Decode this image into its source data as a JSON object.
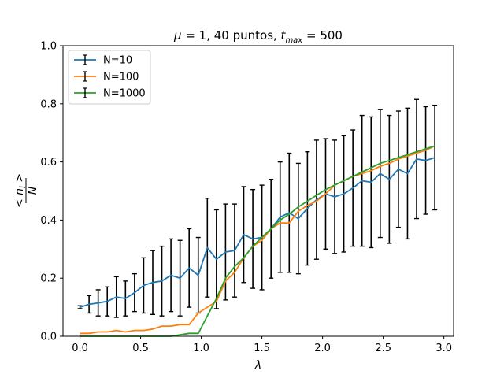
{
  "chart_data": {
    "type": "line",
    "title": "μ = 1, 40 puntos, t_max = 500",
    "title_parts": {
      "mu": "μ",
      "eq1": " = 1, 40 puntos, ",
      "t": "t",
      "sub": "max",
      "eq2": " = 500"
    },
    "xlabel": "λ",
    "ylabel": {
      "num": "< n",
      "sub": "i",
      "close": " >",
      "den": "N"
    },
    "xlim": [
      -0.14,
      3.08
    ],
    "ylim": [
      0.0,
      1.0
    ],
    "xticks": [
      0.0,
      0.5,
      1.0,
      1.5,
      2.0,
      2.5,
      3.0
    ],
    "xtick_labels": [
      "0.0",
      "0.5",
      "1.0",
      "1.5",
      "2.0",
      "2.5",
      "3.0"
    ],
    "yticks": [
      0.0,
      0.2,
      0.4,
      0.6,
      0.8,
      1.0
    ],
    "ytick_labels": [
      "0.0",
      "0.2",
      "0.4",
      "0.6",
      "0.8",
      "1.0"
    ],
    "legend_position": "top-left",
    "error_bar_series": "N=10",
    "x": [
      0.0,
      0.075,
      0.15,
      0.225,
      0.3,
      0.375,
      0.45,
      0.525,
      0.6,
      0.675,
      0.75,
      0.825,
      0.9,
      0.975,
      1.05,
      1.125,
      1.2,
      1.275,
      1.35,
      1.425,
      1.5,
      1.575,
      1.65,
      1.725,
      1.8,
      1.875,
      1.95,
      2.025,
      2.1,
      2.175,
      2.25,
      2.325,
      2.4,
      2.475,
      2.55,
      2.625,
      2.7,
      2.775,
      2.85,
      2.925
    ],
    "series": [
      {
        "name": "N=10",
        "color": "#1f77b4",
        "values": [
          0.1,
          0.11,
          0.115,
          0.12,
          0.135,
          0.13,
          0.15,
          0.175,
          0.185,
          0.19,
          0.21,
          0.2,
          0.235,
          0.21,
          0.305,
          0.265,
          0.29,
          0.295,
          0.35,
          0.335,
          0.34,
          0.37,
          0.41,
          0.425,
          0.405,
          0.44,
          0.47,
          0.49,
          0.48,
          0.49,
          0.51,
          0.535,
          0.53,
          0.56,
          0.54,
          0.575,
          0.56,
          0.61,
          0.605,
          0.615
        ],
        "errors": [
          0.005,
          0.03,
          0.045,
          0.05,
          0.07,
          0.06,
          0.065,
          0.095,
          0.11,
          0.12,
          0.125,
          0.13,
          0.135,
          0.13,
          0.17,
          0.17,
          0.165,
          0.16,
          0.165,
          0.17,
          0.18,
          0.17,
          0.19,
          0.205,
          0.19,
          0.195,
          0.205,
          0.19,
          0.195,
          0.2,
          0.2,
          0.225,
          0.225,
          0.22,
          0.22,
          0.2,
          0.225,
          0.205,
          0.185,
          0.18
        ]
      },
      {
        "name": "N=100",
        "color": "#ff7f0e",
        "values": [
          0.01,
          0.01,
          0.015,
          0.015,
          0.02,
          0.015,
          0.02,
          0.02,
          0.025,
          0.035,
          0.035,
          0.04,
          0.04,
          0.08,
          0.1,
          0.12,
          0.19,
          0.22,
          0.27,
          0.31,
          0.33,
          0.37,
          0.39,
          0.39,
          0.43,
          0.45,
          0.465,
          0.49,
          0.52,
          0.535,
          0.55,
          0.56,
          0.57,
          0.585,
          0.595,
          0.61,
          0.62,
          0.63,
          0.64,
          0.655
        ]
      },
      {
        "name": "N=1000",
        "color": "#2ca02c",
        "values": [
          0.0,
          0.0,
          0.0,
          0.0,
          0.0,
          0.0,
          0.0,
          0.0,
          0.0,
          0.0,
          0.0,
          0.005,
          0.01,
          0.01,
          0.07,
          0.13,
          0.2,
          0.24,
          0.27,
          0.31,
          0.34,
          0.37,
          0.4,
          0.42,
          0.445,
          0.465,
          0.485,
          0.505,
          0.52,
          0.535,
          0.55,
          0.565,
          0.58,
          0.595,
          0.605,
          0.615,
          0.625,
          0.635,
          0.645,
          0.655
        ]
      }
    ]
  }
}
